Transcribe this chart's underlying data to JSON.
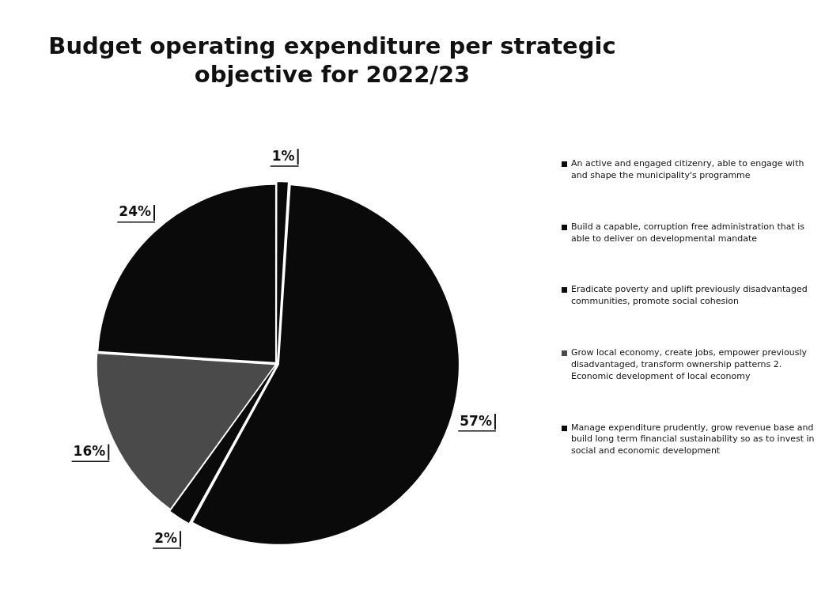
{
  "chart_data": {
    "type": "pie",
    "title": "Budget operating expenditure per strategic objective for 2022/23",
    "categories": [
      "An active and engaged citizenry, able to engage with and shape the municipality's programme",
      "Build a capable, corruption free administration that is able to deliver on developmental mandate",
      "Eradicate poverty and uplift previously disadvantaged communities, promote social cohesion",
      "Grow local economy, create jobs, empower previously disadvantaged, transform ownership patterns 2. Economic development of local economy",
      "Manage expenditure prudently, grow revenue base and build long term financial sustainability so as to invest in social and economic development"
    ],
    "values": [
      1,
      57,
      2,
      16,
      24
    ],
    "colors": [
      "#0a0a0a",
      "#0a0a0a",
      "#0a0a0a",
      "#4a4a4a",
      "#0a0a0a"
    ],
    "value_labels": [
      "1%",
      "57%",
      "2%",
      "16%",
      "24%"
    ],
    "legend": "right"
  }
}
